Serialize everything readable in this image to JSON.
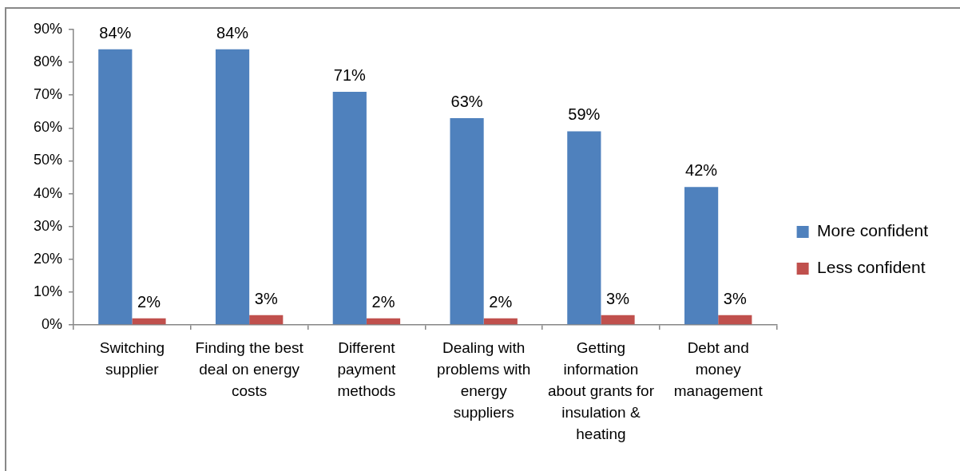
{
  "chart_data": {
    "type": "bar",
    "categories": [
      "Switching\nsupplier",
      "Finding the best\ndeal on energy\ncosts",
      "Different\npayment\nmethods",
      "Dealing with\nproblems with\nenergy\nsuppliers",
      "Getting\ninformation\nabout grants for\ninsulation &\nheating",
      "Debt and\nmoney\nmanagement"
    ],
    "series": [
      {
        "name": "More confident",
        "color": "#4f81bd",
        "values": [
          84,
          84,
          71,
          63,
          59,
          42
        ],
        "value_labels": [
          "84%",
          "84%",
          "71%",
          "63%",
          "59%",
          "42%"
        ]
      },
      {
        "name": "Less confident",
        "color": "#c0504d",
        "values": [
          2,
          3,
          2,
          2,
          3,
          3
        ],
        "value_labels": [
          "2%",
          "3%",
          "2%",
          "2%",
          "3%",
          "3%"
        ]
      }
    ],
    "ylim": [
      0,
      90
    ],
    "yticks": [
      {
        "value": 0,
        "label": "0%"
      },
      {
        "value": 10,
        "label": "10%"
      },
      {
        "value": 20,
        "label": "20%"
      },
      {
        "value": 30,
        "label": "30%"
      },
      {
        "value": 40,
        "label": "40%"
      },
      {
        "value": 50,
        "label": "50%"
      },
      {
        "value": 60,
        "label": "60%"
      },
      {
        "value": 70,
        "label": "70%"
      },
      {
        "value": 80,
        "label": "80%"
      },
      {
        "value": 90,
        "label": "90%"
      }
    ],
    "legend": "right"
  }
}
